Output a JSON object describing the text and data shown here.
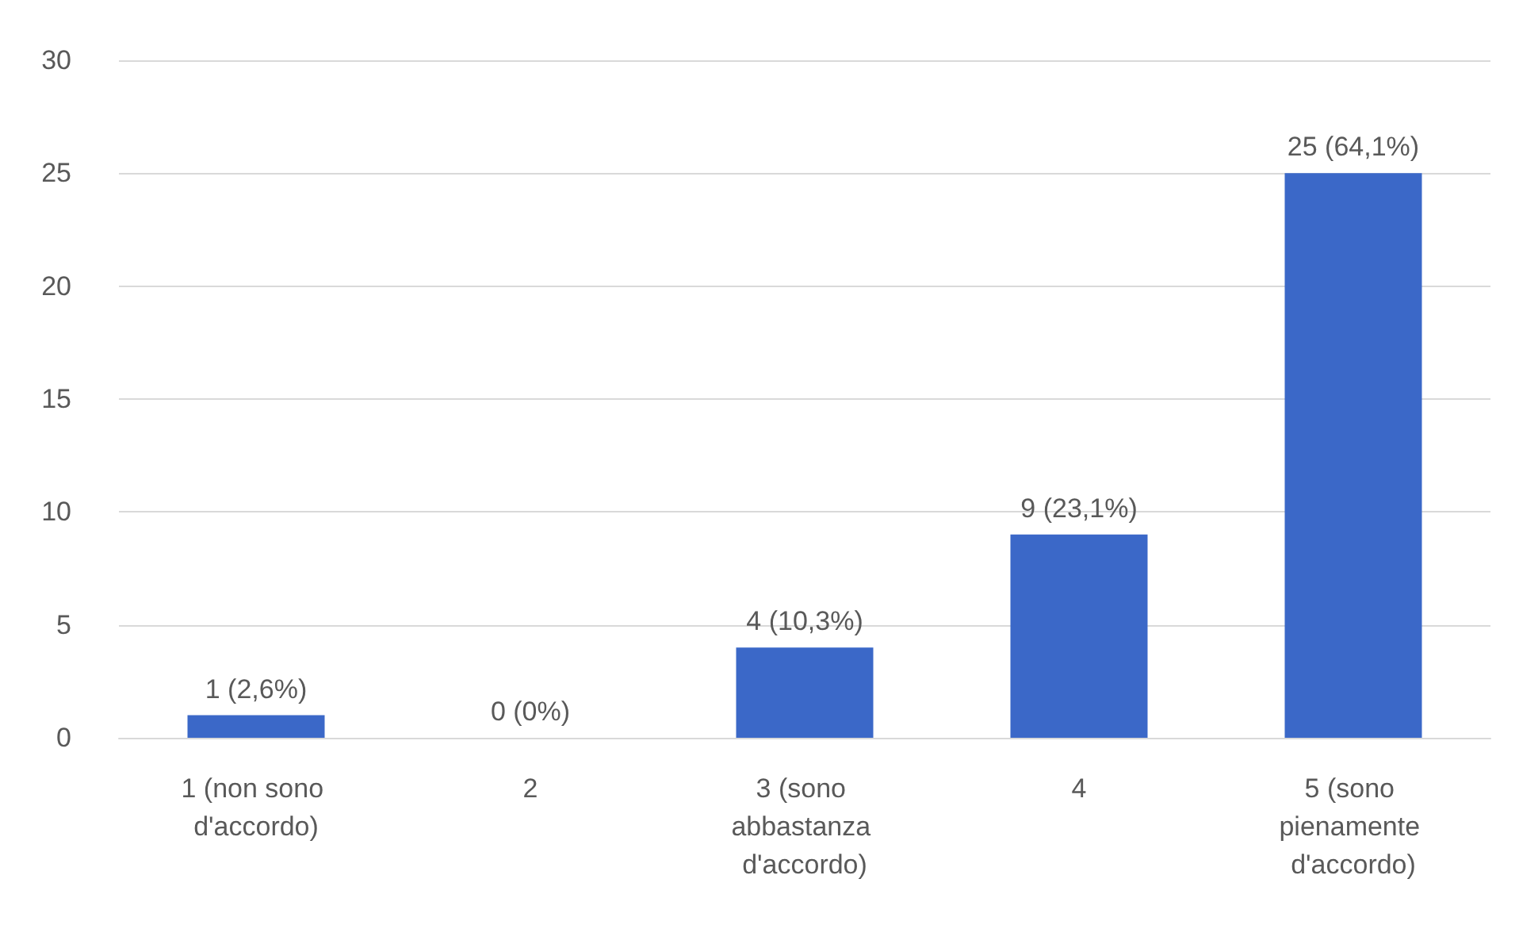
{
  "chart_data": {
    "type": "bar",
    "categories": [
      "1 (non sono d'accordo)",
      "2",
      "3 (sono abbastanza d'accordo)",
      "4",
      "5 (sono pienamente d'accordo)"
    ],
    "values": [
      1,
      0,
      4,
      9,
      25
    ],
    "color": "#3b68c8",
    "value_labels": [
      "1 (2,6%)",
      "0 (0%)",
      "4 (10,3%)",
      "9 (23,1%)",
      "25 (64,1%)"
    ],
    "ylim": [
      0,
      30
    ],
    "yticks": [
      0,
      5,
      10,
      15,
      20,
      25,
      30
    ],
    "grid": "y"
  }
}
